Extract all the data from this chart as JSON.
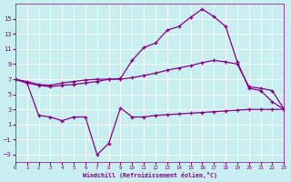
{
  "xlabel": "Windchill (Refroidissement éolien,°C)",
  "background_color": "#c8eef0",
  "grid_color": "#ffffff",
  "line_color": "#880088",
  "xlim": [
    0,
    23
  ],
  "ylim": [
    -4,
    17
  ],
  "yticks": [
    -3,
    -1,
    1,
    3,
    5,
    7,
    9,
    11,
    13,
    15
  ],
  "xticks": [
    0,
    1,
    2,
    3,
    4,
    5,
    6,
    7,
    8,
    9,
    10,
    11,
    12,
    13,
    14,
    15,
    16,
    17,
    18,
    19,
    20,
    21,
    22,
    23
  ],
  "series": {
    "upper": [
      [
        0,
        7.0
      ],
      [
        1,
        6.7
      ],
      [
        2,
        6.3
      ],
      [
        3,
        6.2
      ],
      [
        4,
        6.5
      ],
      [
        5,
        6.7
      ],
      [
        6,
        6.9
      ],
      [
        7,
        7.0
      ],
      [
        8,
        7.0
      ],
      [
        9,
        7.1
      ],
      [
        10,
        9.5
      ],
      [
        11,
        11.2
      ],
      [
        12,
        11.8
      ],
      [
        13,
        13.5
      ],
      [
        14,
        14.0
      ],
      [
        15,
        15.2
      ],
      [
        16,
        16.3
      ],
      [
        17,
        15.3
      ],
      [
        18,
        14.0
      ],
      [
        19,
        9.3
      ],
      [
        20,
        5.8
      ],
      [
        21,
        5.5
      ],
      [
        22,
        4.0
      ],
      [
        23,
        3.0
      ]
    ],
    "middle": [
      [
        0,
        7.0
      ],
      [
        1,
        6.5
      ],
      [
        2,
        6.2
      ],
      [
        3,
        6.0
      ],
      [
        4,
        6.2
      ],
      [
        5,
        6.3
      ],
      [
        6,
        6.5
      ],
      [
        7,
        6.7
      ],
      [
        8,
        7.0
      ],
      [
        9,
        7.0
      ],
      [
        10,
        7.2
      ],
      [
        11,
        7.5
      ],
      [
        12,
        7.8
      ],
      [
        13,
        8.2
      ],
      [
        14,
        8.5
      ],
      [
        15,
        8.8
      ],
      [
        16,
        9.2
      ],
      [
        17,
        9.5
      ],
      [
        18,
        9.3
      ],
      [
        19,
        9.0
      ],
      [
        20,
        6.0
      ],
      [
        21,
        5.8
      ],
      [
        22,
        5.5
      ],
      [
        23,
        3.0
      ]
    ],
    "lower": [
      [
        0,
        7.0
      ],
      [
        1,
        6.5
      ],
      [
        2,
        2.2
      ],
      [
        3,
        2.0
      ],
      [
        4,
        1.5
      ],
      [
        5,
        2.0
      ],
      [
        6,
        2.0
      ],
      [
        7,
        -3.0
      ],
      [
        8,
        -1.5
      ],
      [
        9,
        3.2
      ],
      [
        10,
        2.0
      ],
      [
        11,
        2.0
      ],
      [
        12,
        2.2
      ],
      [
        13,
        2.3
      ],
      [
        14,
        2.4
      ],
      [
        15,
        2.5
      ],
      [
        16,
        2.6
      ],
      [
        17,
        2.7
      ],
      [
        18,
        2.8
      ],
      [
        19,
        2.9
      ],
      [
        20,
        3.0
      ],
      [
        21,
        3.0
      ],
      [
        22,
        3.0
      ],
      [
        23,
        3.0
      ]
    ]
  }
}
